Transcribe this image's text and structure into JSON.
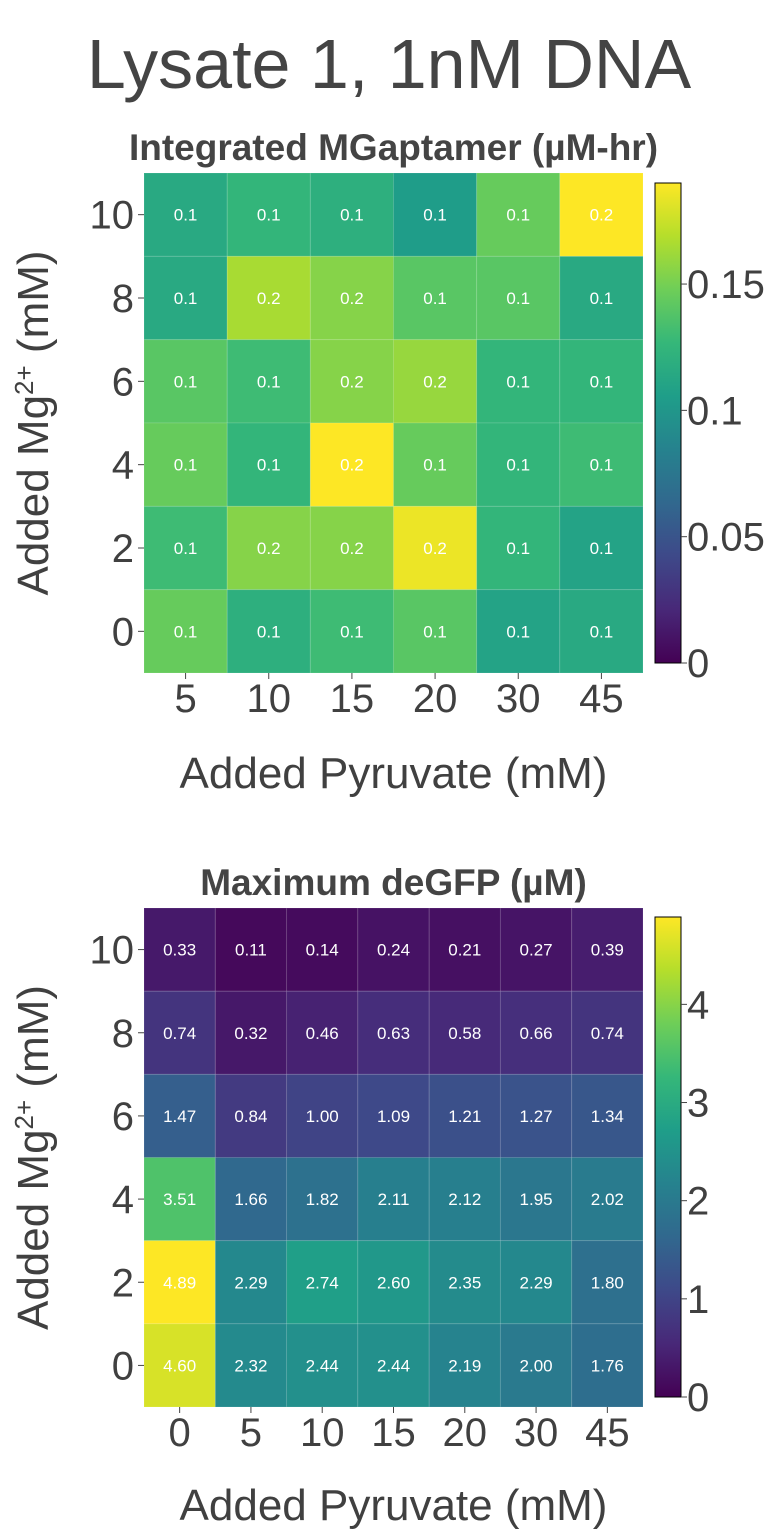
{
  "page": {
    "title": "Lysate 1, 1nM DNA"
  },
  "chart_data": [
    {
      "type": "heatmap",
      "title": "Integrated MGaptamer (µM-hr)",
      "xlabel": "Added Pyruvate (mM)",
      "ylabel_main": "Added Mg",
      "ylabel_sup": "2+",
      "ylabel_tail": " (mM)",
      "x_categories": [
        "5",
        "10",
        "15",
        "20",
        "30",
        "45"
      ],
      "y_categories": [
        "10",
        "8",
        "6",
        "4",
        "2",
        "0"
      ],
      "values": [
        [
          0.115,
          0.125,
          0.12,
          0.105,
          0.145,
          0.19
        ],
        [
          0.115,
          0.165,
          0.155,
          0.14,
          0.14,
          0.115
        ],
        [
          0.14,
          0.13,
          0.155,
          0.16,
          0.125,
          0.125
        ],
        [
          0.145,
          0.125,
          0.19,
          0.145,
          0.125,
          0.13
        ],
        [
          0.13,
          0.155,
          0.155,
          0.185,
          0.125,
          0.11
        ],
        [
          0.145,
          0.12,
          0.13,
          0.14,
          0.11,
          0.115
        ]
      ],
      "labels": [
        [
          "0.1",
          "0.1",
          "0.1",
          "0.1",
          "0.1",
          "0.2"
        ],
        [
          "0.1",
          "0.2",
          "0.2",
          "0.1",
          "0.1",
          "0.1"
        ],
        [
          "0.1",
          "0.1",
          "0.2",
          "0.2",
          "0.1",
          "0.1"
        ],
        [
          "0.1",
          "0.1",
          "0.2",
          "0.1",
          "0.1",
          "0.1"
        ],
        [
          "0.1",
          "0.2",
          "0.2",
          "0.2",
          "0.1",
          "0.1"
        ],
        [
          "0.1",
          "0.1",
          "0.1",
          "0.1",
          "0.1",
          "0.1"
        ]
      ],
      "colorscale": "viridis",
      "zlim": [
        0,
        0.19
      ],
      "colorbar_ticks": [
        {
          "value": 0,
          "label": "0"
        },
        {
          "value": 0.05,
          "label": "0.05"
        },
        {
          "value": 0.1,
          "label": "0.1"
        },
        {
          "value": 0.15,
          "label": "0.15"
        }
      ]
    },
    {
      "type": "heatmap",
      "title": "Maximum deGFP (µM)",
      "xlabel": "Added Pyruvate (mM)",
      "ylabel_main": "Added Mg",
      "ylabel_sup": "2+",
      "ylabel_tail": " (mM)",
      "x_categories": [
        "0",
        "5",
        "10",
        "15",
        "20",
        "30",
        "45"
      ],
      "y_categories": [
        "10",
        "8",
        "6",
        "4",
        "2",
        "0"
      ],
      "values": [
        [
          0.33,
          0.11,
          0.14,
          0.24,
          0.21,
          0.27,
          0.39
        ],
        [
          0.74,
          0.32,
          0.46,
          0.63,
          0.58,
          0.66,
          0.74
        ],
        [
          1.47,
          0.84,
          1.0,
          1.09,
          1.21,
          1.27,
          1.34
        ],
        [
          3.51,
          1.66,
          1.82,
          2.11,
          2.12,
          1.95,
          2.02
        ],
        [
          4.89,
          2.29,
          2.74,
          2.6,
          2.35,
          2.29,
          1.8
        ],
        [
          4.6,
          2.32,
          2.44,
          2.44,
          2.19,
          2.0,
          1.76
        ]
      ],
      "labels": [
        [
          "0.33",
          "0.11",
          "0.14",
          "0.24",
          "0.21",
          "0.27",
          "0.39"
        ],
        [
          "0.74",
          "0.32",
          "0.46",
          "0.63",
          "0.58",
          "0.66",
          "0.74"
        ],
        [
          "1.47",
          "0.84",
          "1.00",
          "1.09",
          "1.21",
          "1.27",
          "1.34"
        ],
        [
          "3.51",
          "1.66",
          "1.82",
          "2.11",
          "2.12",
          "1.95",
          "2.02"
        ],
        [
          "4.89",
          "2.29",
          "2.74",
          "2.60",
          "2.35",
          "2.29",
          "1.80"
        ],
        [
          "4.60",
          "2.32",
          "2.44",
          "2.44",
          "2.19",
          "2.00",
          "1.76"
        ]
      ],
      "colorscale": "viridis",
      "zlim": [
        0,
        4.89
      ],
      "colorbar_ticks": [
        {
          "value": 0,
          "label": "0"
        },
        {
          "value": 1,
          "label": "1"
        },
        {
          "value": 2,
          "label": "2"
        },
        {
          "value": 3,
          "label": "3"
        },
        {
          "value": 4,
          "label": "4"
        }
      ]
    }
  ]
}
